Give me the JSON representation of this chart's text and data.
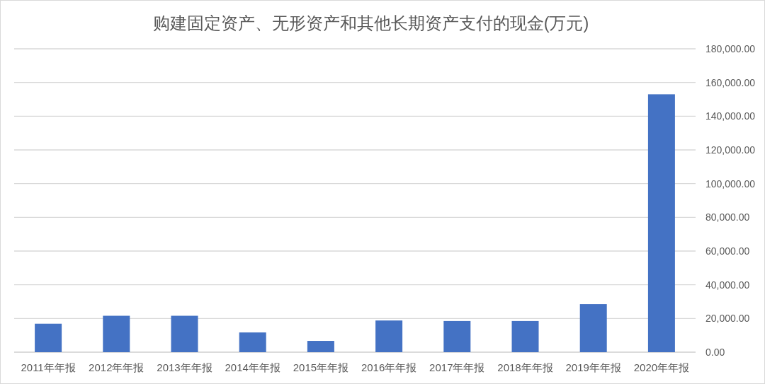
{
  "chart_data": {
    "type": "bar",
    "title": "购建固定资产、无形资产和其他长期资产支付的现金(万元)",
    "categories": [
      "2011年年报",
      "2012年年报",
      "2013年年报",
      "2014年年报",
      "2015年年报",
      "2016年年报",
      "2017年年报",
      "2018年年报",
      "2019年年报",
      "2020年年报"
    ],
    "values": [
      16900,
      21600,
      21600,
      11700,
      6700,
      18800,
      18500,
      18500,
      28500,
      153000
    ],
    "color": "#4472c4",
    "ylim": [
      0,
      180000
    ],
    "yticks": [
      {
        "value": 0,
        "label": "0.00"
      },
      {
        "value": 20000,
        "label": "20,000.00"
      },
      {
        "value": 40000,
        "label": "40,000.00"
      },
      {
        "value": 60000,
        "label": "60,000.00"
      },
      {
        "value": 80000,
        "label": "80,000.00"
      },
      {
        "value": 100000,
        "label": "100,000.00"
      },
      {
        "value": 120000,
        "label": "120,000.00"
      },
      {
        "value": 140000,
        "label": "140,000.00"
      },
      {
        "value": 160000,
        "label": "160,000.00"
      },
      {
        "value": 180000,
        "label": "180,000.00"
      }
    ],
    "grid": "y"
  }
}
